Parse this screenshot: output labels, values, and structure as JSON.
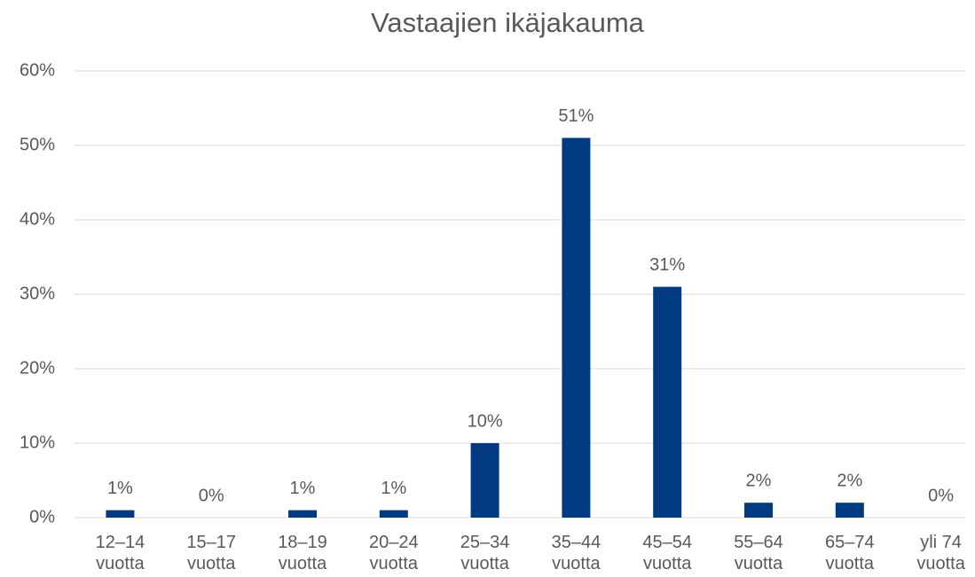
{
  "chart_data": {
    "type": "bar",
    "title": "Vastaajien ikäjakauma",
    "categories": [
      "12–14 vuotta",
      "15–17 vuotta",
      "18–19 vuotta",
      "20–24 vuotta",
      "25–34 vuotta",
      "35–44 vuotta",
      "45–54 vuotta",
      "55–64 vuotta",
      "65–74 vuotta",
      "yli 74 vuotta"
    ],
    "values": [
      1,
      0,
      1,
      1,
      10,
      51,
      31,
      2,
      2,
      0
    ],
    "value_labels": [
      "1%",
      "0%",
      "1%",
      "1%",
      "10%",
      "51%",
      "31%",
      "2%",
      "2%",
      "0%"
    ],
    "color": "#003a80",
    "ylim": [
      0,
      60
    ],
    "yticks": [
      {
        "value": 0,
        "label": "0%"
      },
      {
        "value": 10,
        "label": "10%"
      },
      {
        "value": 20,
        "label": "20%"
      },
      {
        "value": 30,
        "label": "30%"
      },
      {
        "value": 40,
        "label": "40%"
      },
      {
        "value": 50,
        "label": "50%"
      },
      {
        "value": 60,
        "label": "60%"
      }
    ],
    "grid": true
  }
}
